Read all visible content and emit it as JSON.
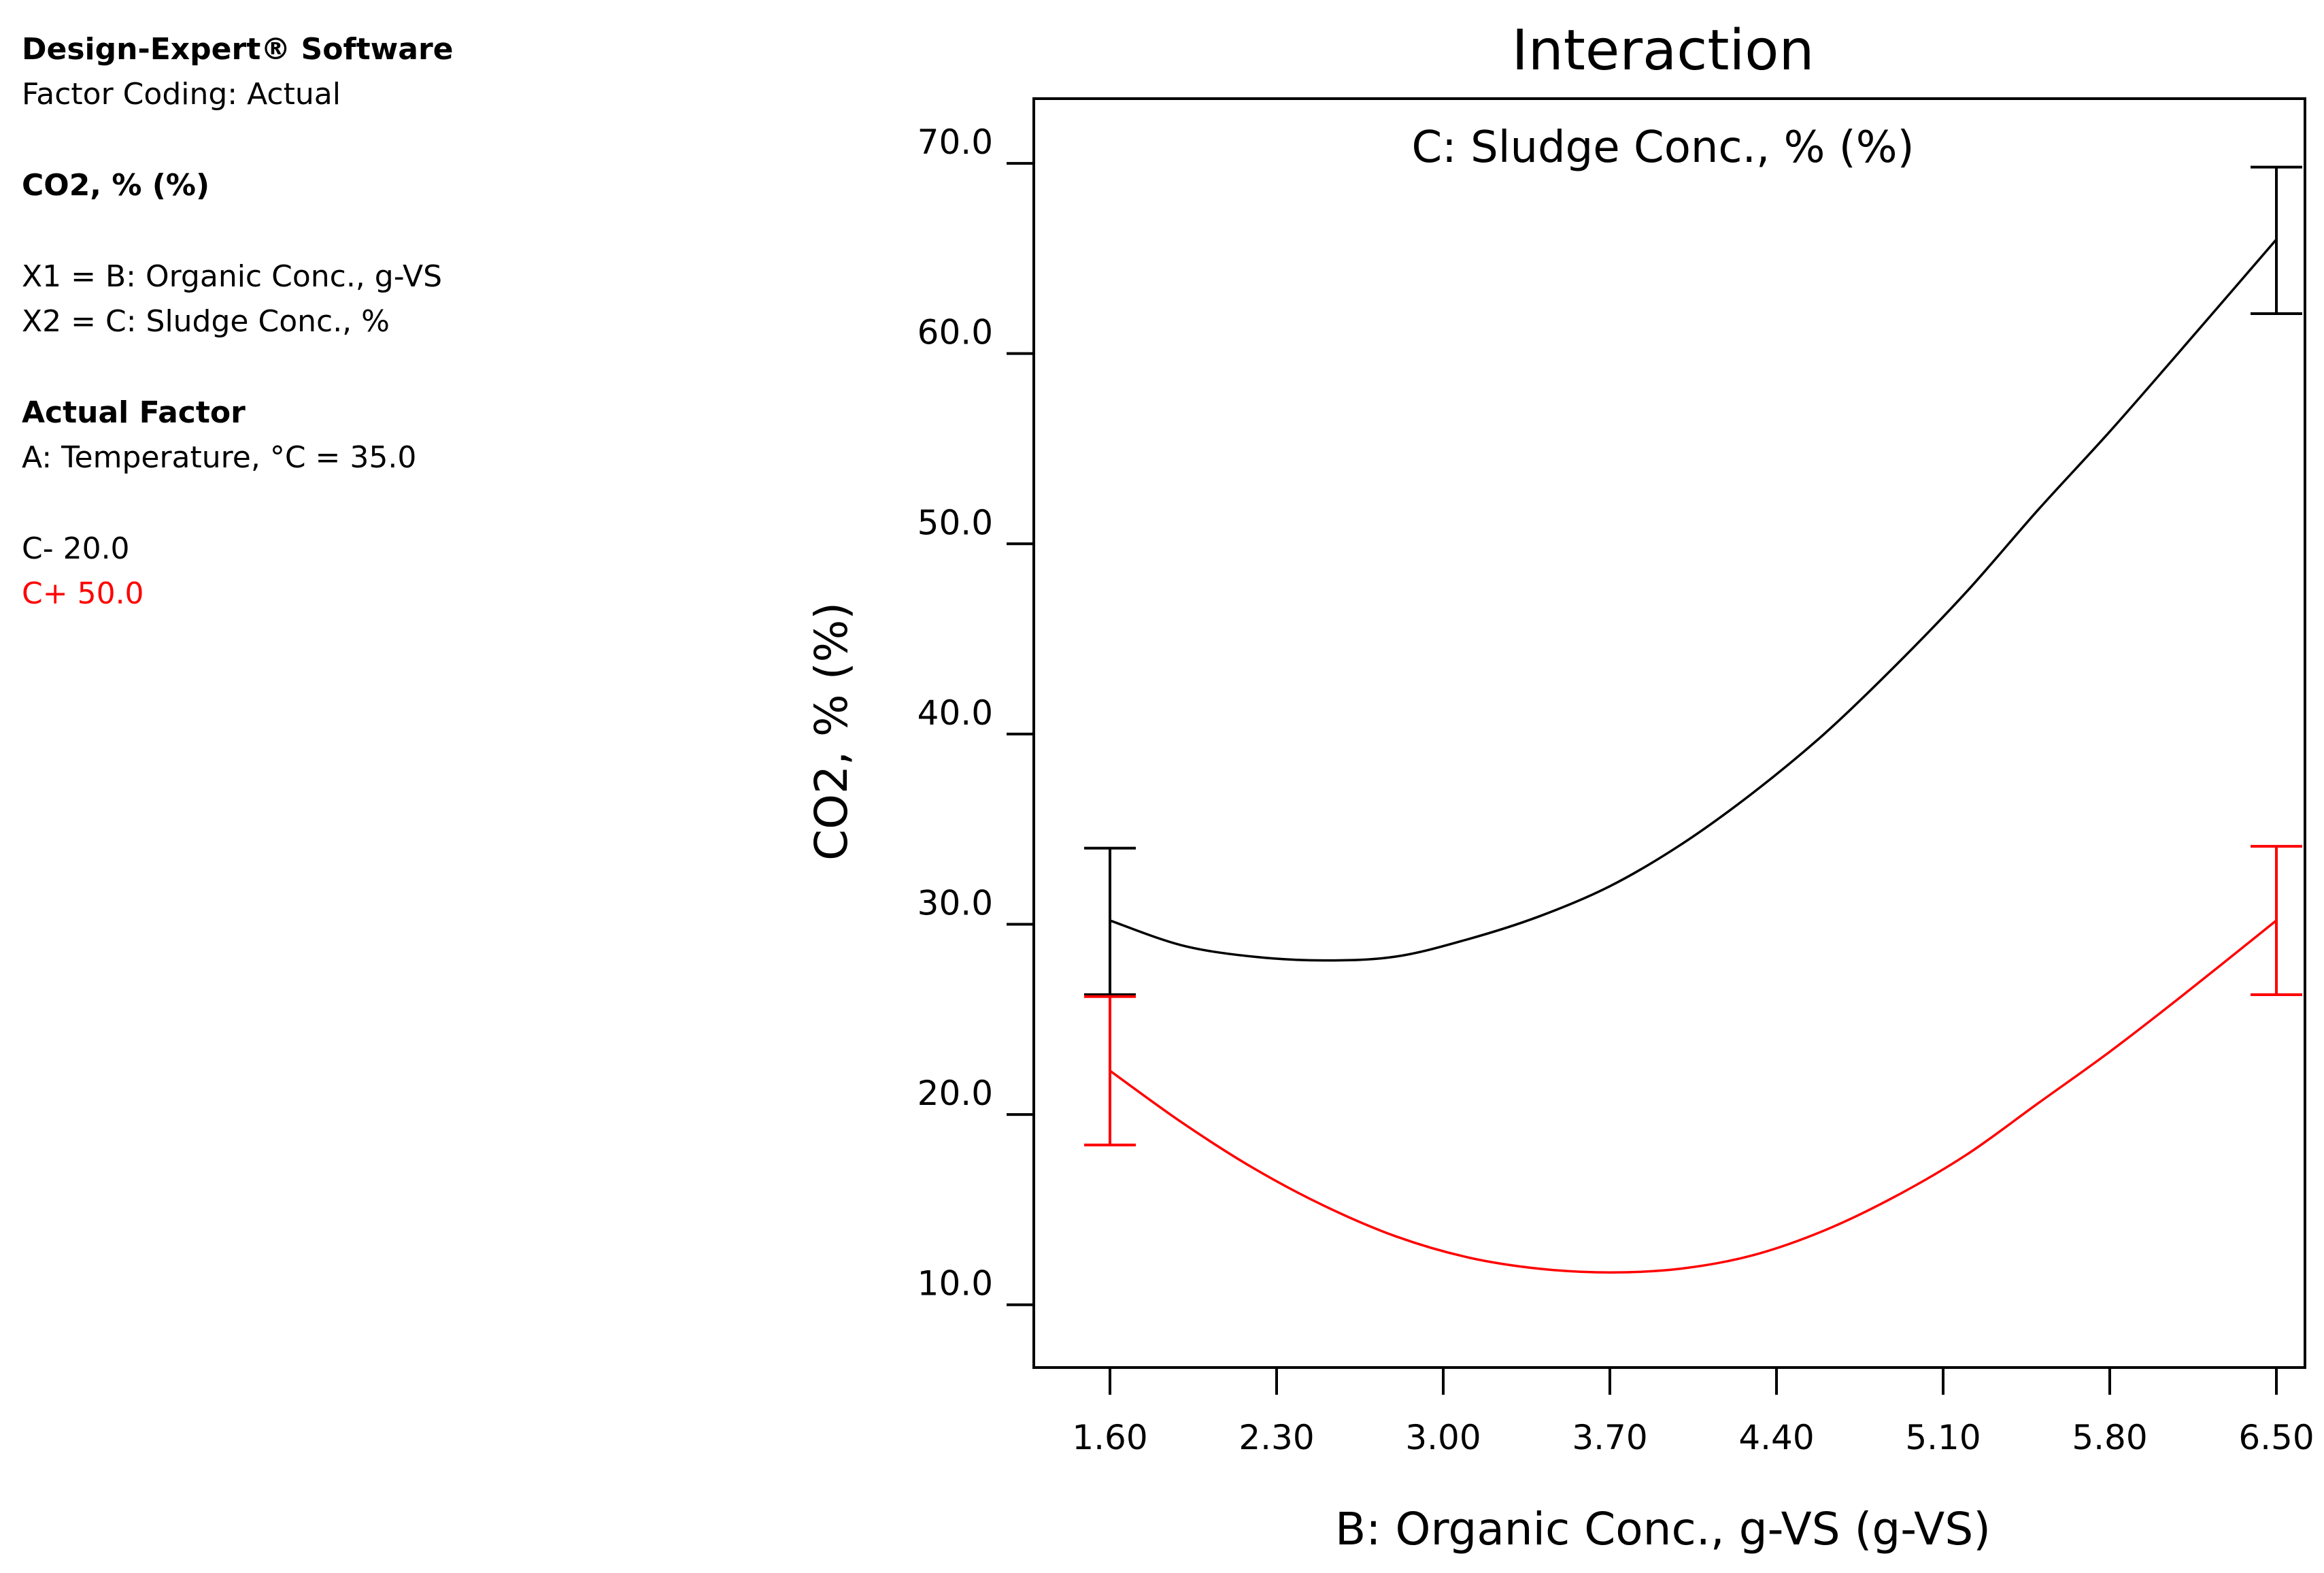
{
  "info_panel": {
    "software": "Design-Expert® Software",
    "factor_coding": "Factor Coding: Actual",
    "response": "CO2, % (%)",
    "x1": "X1 = B: Organic Conc., g-VS",
    "x2": "X2 = C: Sludge Conc., %",
    "actual_factor_heading": "Actual Factor",
    "actual_factor_value": "A: Temperature, °C = 35.0",
    "series_low": "C- 20.0",
    "series_high": "C+ 50.0"
  },
  "colors": {
    "low": "#000000",
    "high": "#ff0000"
  },
  "chart_data": {
    "type": "line",
    "title": "Interaction",
    "subtitle": "C: Sludge Conc., % (%)",
    "xlabel": "B: Organic Conc., g-VS (g-VS)",
    "ylabel": "CO2, % (%)",
    "xlim": [
      1.28,
      6.62
    ],
    "ylim": [
      6.7,
      73.4
    ],
    "x_ticks": [
      1.6,
      2.3,
      3.0,
      3.7,
      4.4,
      5.1,
      5.8,
      6.5
    ],
    "x_tick_labels": [
      "1.60",
      "2.30",
      "3.00",
      "3.70",
      "4.40",
      "5.10",
      "5.80",
      "6.50"
    ],
    "y_ticks": [
      10,
      20,
      30,
      40,
      50,
      60,
      70
    ],
    "y_tick_labels": [
      "10.0",
      "20.0",
      "30.0",
      "40.0",
      "50.0",
      "60.0",
      "70.0"
    ],
    "series": [
      {
        "name": "C- 20.0",
        "color": "#000000",
        "x": [
          1.6,
          1.9,
          2.2,
          2.5,
          2.8,
          3.1,
          3.4,
          3.7,
          4.0,
          4.3,
          4.6,
          4.9,
          5.2,
          5.5,
          5.8,
          6.1,
          6.5
        ],
        "y": [
          30.2,
          28.9,
          28.3,
          28.1,
          28.3,
          29.2,
          30.4,
          32.0,
          34.2,
          36.9,
          40.0,
          43.6,
          47.5,
          51.8,
          55.9,
          60.2,
          66.0
        ],
        "error_bars": [
          {
            "x": 1.6,
            "lower": 26.3,
            "upper": 34.0
          },
          {
            "x": 6.5,
            "lower": 62.1,
            "upper": 69.8
          }
        ]
      },
      {
        "name": "C+ 50.0",
        "color": "#ff0000",
        "x": [
          1.6,
          1.9,
          2.2,
          2.5,
          2.8,
          3.1,
          3.4,
          3.7,
          4.0,
          4.3,
          4.6,
          4.9,
          5.2,
          5.5,
          5.8,
          6.1,
          6.5
        ],
        "y": [
          22.3,
          19.6,
          17.2,
          15.2,
          13.6,
          12.5,
          11.9,
          11.7,
          11.9,
          12.6,
          13.9,
          15.7,
          17.9,
          20.6,
          23.3,
          26.2,
          30.2
        ],
        "error_bars": [
          {
            "x": 1.6,
            "lower": 18.4,
            "upper": 26.2
          },
          {
            "x": 6.5,
            "lower": 26.3,
            "upper": 34.1
          }
        ]
      }
    ],
    "grid": false,
    "legend": "left panel"
  }
}
